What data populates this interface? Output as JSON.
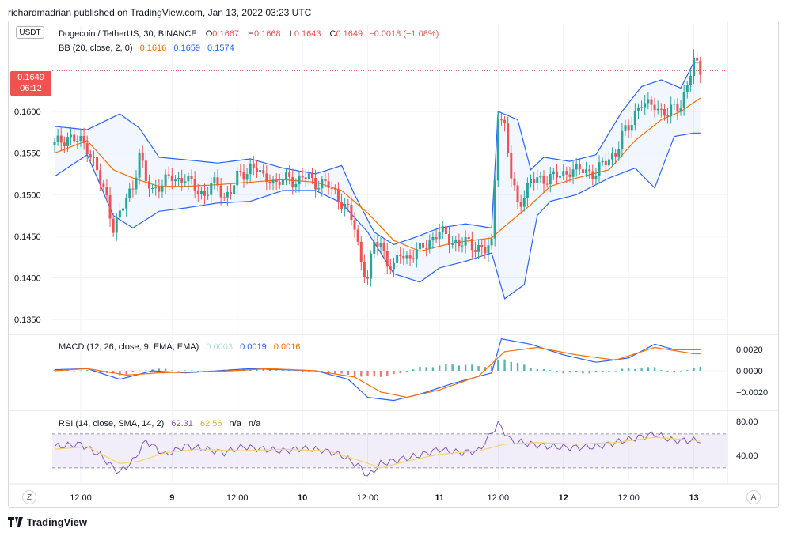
{
  "header": {
    "publisher_line": "richardmadrian published on TradingView.com, Jan 13, 2022 03:23 UTC"
  },
  "currency_button": "USDT",
  "price_tag": {
    "price": "0.1649",
    "countdown": "06:12"
  },
  "legend": {
    "symbol": "Dogecoin / TetherUS, 30, BINANCE",
    "o_label": "O",
    "o": "0.1667",
    "h_label": "H",
    "h": "0.1668",
    "l_label": "L",
    "l": "0.1643",
    "c_label": "C",
    "c": "0.1649",
    "change": "−0.0018 (−1.08%)",
    "bb_label": "BB (20, close, 2, 0)",
    "bb_basis": "0.1616",
    "bb_upper": "0.1659",
    "bb_lower": "0.1574",
    "macd_label": "MACD (12, 26, close, 9, EMA, EMA)",
    "macd_hist": "0.0003",
    "macd_line": "0.0019",
    "macd_signal": "0.0016",
    "rsi_label": "RSI (14, close, SMA, 14, 2)",
    "rsi_value": "62.31",
    "rsi_ma": "62.56",
    "rsi_na1": "n/a",
    "rsi_na2": "n/a"
  },
  "axis": {
    "price_ticks": [
      "0.1600",
      "0.1550",
      "0.1500",
      "0.1450",
      "0.1400",
      "0.1350"
    ],
    "macd_ticks": [
      "0.0020",
      "0.0000",
      "−0.0020"
    ],
    "rsi_ticks": [
      "80.00",
      "40.00"
    ],
    "time_ticks": [
      "12:00",
      "9",
      "12:00",
      "10",
      "12:00",
      "11",
      "12:00",
      "12",
      "12:00",
      "13"
    ]
  },
  "buttons": {
    "zoom": "Z",
    "auto": "A"
  },
  "footer": {
    "brand": "TradingView"
  },
  "colors": {
    "up": "#26a69a",
    "down": "#ef5350",
    "band": "#2962ff",
    "basis": "#ff6d00",
    "rsi": "#7e57c2",
    "rsi_ma": "#f5d36b"
  },
  "chart_data": [
    {
      "type": "candlestick",
      "title": "Dogecoin / TetherUS, 30, BINANCE",
      "ylim": [
        0.1335,
        0.1675
      ],
      "x": [
        "12:00",
        "9",
        "12:00",
        "10",
        "12:00",
        "11",
        "12:00",
        "12",
        "12:00",
        "13"
      ],
      "close_path": [
        [
          0,
          0.156
        ],
        [
          2,
          0.1565
        ],
        [
          4,
          0.157
        ],
        [
          6,
          0.1566
        ],
        [
          8,
          0.1563
        ],
        [
          10,
          0.1558
        ],
        [
          12,
          0.154
        ],
        [
          14,
          0.1515
        ],
        [
          16,
          0.1495
        ],
        [
          18,
          0.1462
        ],
        [
          20,
          0.1475
        ],
        [
          22,
          0.1495
        ],
        [
          24,
          0.151
        ],
        [
          26,
          0.155
        ],
        [
          28,
          0.1515
        ],
        [
          30,
          0.1505
        ],
        [
          32,
          0.1512
        ],
        [
          34,
          0.1516
        ],
        [
          36,
          0.152
        ],
        [
          38,
          0.1518
        ],
        [
          40,
          0.1522
        ],
        [
          42,
          0.151
        ],
        [
          44,
          0.1505
        ],
        [
          46,
          0.15
        ],
        [
          48,
          0.1512
        ],
        [
          50,
          0.151
        ],
        [
          52,
          0.1498
        ],
        [
          54,
          0.1505
        ],
        [
          56,
          0.152
        ],
        [
          58,
          0.1525
        ],
        [
          60,
          0.1535
        ],
        [
          62,
          0.153
        ],
        [
          64,
          0.1518
        ],
        [
          66,
          0.1522
        ],
        [
          68,
          0.1512
        ],
        [
          70,
          0.1516
        ],
        [
          72,
          0.1522
        ],
        [
          74,
          0.1515
        ],
        [
          76,
          0.152
        ],
        [
          78,
          0.152
        ],
        [
          80,
          0.1515
        ],
        [
          82,
          0.1513
        ],
        [
          84,
          0.151
        ],
        [
          86,
          0.1502
        ],
        [
          88,
          0.1492
        ],
        [
          90,
          0.148
        ],
        [
          92,
          0.146
        ],
        [
          94,
          0.142
        ],
        [
          96,
          0.14
        ],
        [
          98,
          0.144
        ],
        [
          100,
          0.1442
        ],
        [
          102,
          0.142
        ],
        [
          104,
          0.141
        ],
        [
          106,
          0.143
        ],
        [
          108,
          0.1425
        ],
        [
          110,
          0.1428
        ],
        [
          112,
          0.1432
        ],
        [
          114,
          0.1442
        ],
        [
          116,
          0.1448
        ],
        [
          118,
          0.1455
        ],
        [
          120,
          0.145
        ],
        [
          122,
          0.1445
        ],
        [
          124,
          0.144
        ],
        [
          126,
          0.1442
        ],
        [
          128,
          0.144
        ],
        [
          130,
          0.1437
        ],
        [
          132,
          0.1432
        ],
        [
          134,
          0.144
        ],
        [
          136,
          0.16
        ],
        [
          138,
          0.158
        ],
        [
          140,
          0.152
        ],
        [
          142,
          0.149
        ],
        [
          144,
          0.15
        ],
        [
          146,
          0.1515
        ],
        [
          148,
          0.1518
        ],
        [
          150,
          0.152
        ],
        [
          152,
          0.152
        ],
        [
          154,
          0.1522
        ],
        [
          156,
          0.1525
        ],
        [
          158,
          0.153
        ],
        [
          160,
          0.1528
        ],
        [
          162,
          0.153
        ],
        [
          164,
          0.1528
        ],
        [
          166,
          0.1525
        ],
        [
          168,
          0.1535
        ],
        [
          170,
          0.1545
        ],
        [
          172,
          0.155
        ],
        [
          174,
          0.157
        ],
        [
          176,
          0.158
        ],
        [
          178,
          0.16
        ],
        [
          180,
          0.161
        ],
        [
          182,
          0.1605
        ],
        [
          184,
          0.161
        ],
        [
          186,
          0.16
        ],
        [
          188,
          0.1595
        ],
        [
          190,
          0.1605
        ],
        [
          192,
          0.161
        ],
        [
          194,
          0.163
        ],
        [
          196,
          0.166
        ],
        [
          198,
          0.1649
        ]
      ],
      "bb_upper": [
        [
          0,
          0.1582
        ],
        [
          10,
          0.1578
        ],
        [
          20,
          0.1597
        ],
        [
          26,
          0.158
        ],
        [
          32,
          0.1545
        ],
        [
          40,
          0.1542
        ],
        [
          50,
          0.1538
        ],
        [
          60,
          0.1543
        ],
        [
          70,
          0.1532
        ],
        [
          80,
          0.1525
        ],
        [
          88,
          0.1535
        ],
        [
          92,
          0.15
        ],
        [
          98,
          0.1455
        ],
        [
          104,
          0.144
        ],
        [
          110,
          0.1448
        ],
        [
          118,
          0.146
        ],
        [
          126,
          0.1465
        ],
        [
          134,
          0.146
        ],
        [
          136,
          0.16
        ],
        [
          142,
          0.159
        ],
        [
          146,
          0.153
        ],
        [
          150,
          0.1545
        ],
        [
          158,
          0.154
        ],
        [
          166,
          0.1548
        ],
        [
          174,
          0.16
        ],
        [
          180,
          0.163
        ],
        [
          186,
          0.1638
        ],
        [
          192,
          0.1628
        ],
        [
          196,
          0.1659
        ]
      ],
      "bb_basis": [
        [
          0,
          0.155
        ],
        [
          10,
          0.1565
        ],
        [
          18,
          0.153
        ],
        [
          24,
          0.152
        ],
        [
          32,
          0.151
        ],
        [
          40,
          0.151
        ],
        [
          50,
          0.1512
        ],
        [
          60,
          0.1515
        ],
        [
          70,
          0.1518
        ],
        [
          80,
          0.1515
        ],
        [
          88,
          0.1505
        ],
        [
          96,
          0.1478
        ],
        [
          104,
          0.1445
        ],
        [
          112,
          0.1432
        ],
        [
          122,
          0.1442
        ],
        [
          134,
          0.1448
        ],
        [
          138,
          0.1462
        ],
        [
          146,
          0.1488
        ],
        [
          152,
          0.151
        ],
        [
          160,
          0.152
        ],
        [
          170,
          0.153
        ],
        [
          178,
          0.1565
        ],
        [
          186,
          0.159
        ],
        [
          192,
          0.16
        ],
        [
          198,
          0.1616
        ]
      ],
      "bb_lower": [
        [
          0,
          0.1522
        ],
        [
          10,
          0.1548
        ],
        [
          18,
          0.1475
        ],
        [
          24,
          0.146
        ],
        [
          32,
          0.148
        ],
        [
          40,
          0.1484
        ],
        [
          50,
          0.149
        ],
        [
          60,
          0.1492
        ],
        [
          70,
          0.1505
        ],
        [
          80,
          0.1505
        ],
        [
          88,
          0.149
        ],
        [
          96,
          0.1455
        ],
        [
          104,
          0.1405
        ],
        [
          112,
          0.1395
        ],
        [
          118,
          0.1412
        ],
        [
          126,
          0.142
        ],
        [
          134,
          0.143
        ],
        [
          138,
          0.1375
        ],
        [
          144,
          0.1392
        ],
        [
          148,
          0.1475
        ],
        [
          152,
          0.1492
        ],
        [
          160,
          0.15
        ],
        [
          170,
          0.152
        ],
        [
          178,
          0.1532
        ],
        [
          184,
          0.1508
        ],
        [
          190,
          0.157
        ],
        [
          196,
          0.1574
        ]
      ]
    },
    {
      "type": "line",
      "title": "MACD (12, 26, close, 9, EMA, EMA)",
      "ylim": [
        -0.0035,
        0.0032
      ],
      "macd": [
        [
          0,
          0.0001
        ],
        [
          10,
          0.0002
        ],
        [
          20,
          -0.0008
        ],
        [
          30,
          0.0
        ],
        [
          40,
          -0.0002
        ],
        [
          50,
          0.0
        ],
        [
          60,
          0.0002
        ],
        [
          70,
          0.0001
        ],
        [
          80,
          0.0
        ],
        [
          90,
          -0.0008
        ],
        [
          96,
          -0.0025
        ],
        [
          104,
          -0.0028
        ],
        [
          112,
          -0.0022
        ],
        [
          122,
          -0.0012
        ],
        [
          134,
          -0.0002
        ],
        [
          137,
          0.003
        ],
        [
          146,
          0.0025
        ],
        [
          156,
          0.0015
        ],
        [
          166,
          0.0008
        ],
        [
          176,
          0.0012
        ],
        [
          184,
          0.0025
        ],
        [
          190,
          0.002
        ],
        [
          196,
          0.002
        ]
      ],
      "signal": [
        [
          0,
          0.0
        ],
        [
          10,
          0.0002
        ],
        [
          22,
          -0.0004
        ],
        [
          32,
          -0.0002
        ],
        [
          44,
          -0.0001
        ],
        [
          54,
          0.0
        ],
        [
          66,
          0.0002
        ],
        [
          80,
          0.0
        ],
        [
          92,
          -0.0006
        ],
        [
          100,
          -0.002
        ],
        [
          108,
          -0.0025
        ],
        [
          118,
          -0.0018
        ],
        [
          130,
          -0.0005
        ],
        [
          138,
          0.0018
        ],
        [
          148,
          0.0022
        ],
        [
          160,
          0.0015
        ],
        [
          172,
          0.001
        ],
        [
          184,
          0.0022
        ],
        [
          196,
          0.0016
        ]
      ],
      "hist": [
        [
          0,
          0.0001
        ],
        [
          10,
          0.0
        ],
        [
          20,
          -0.0004
        ],
        [
          30,
          0.0002
        ],
        [
          40,
          0.0
        ],
        [
          50,
          -0.0001
        ],
        [
          60,
          0.0002
        ],
        [
          70,
          0.0001
        ],
        [
          80,
          -0.0001
        ],
        [
          90,
          -0.0004
        ],
        [
          96,
          -0.0006
        ],
        [
          104,
          -0.0004
        ],
        [
          112,
          0.0003
        ],
        [
          122,
          0.0006
        ],
        [
          134,
          0.0004
        ],
        [
          137,
          0.0012
        ],
        [
          146,
          0.0003
        ],
        [
          156,
          -0.0002
        ],
        [
          166,
          -0.0002
        ],
        [
          176,
          0.0002
        ],
        [
          184,
          0.0003
        ],
        [
          190,
          -0.0002
        ],
        [
          196,
          0.0003
        ]
      ]
    },
    {
      "type": "line",
      "title": "RSI (14, close, SMA, 14, 2)",
      "ylim": [
        15,
        95
      ],
      "bands": [
        70,
        50,
        30
      ],
      "rsi": [
        [
          0,
          55
        ],
        [
          8,
          58
        ],
        [
          14,
          45
        ],
        [
          18,
          30
        ],
        [
          20,
          25
        ],
        [
          24,
          38
        ],
        [
          28,
          62
        ],
        [
          34,
          45
        ],
        [
          40,
          56
        ],
        [
          46,
          52
        ],
        [
          52,
          48
        ],
        [
          58,
          55
        ],
        [
          64,
          52
        ],
        [
          70,
          50
        ],
        [
          76,
          53
        ],
        [
          82,
          51
        ],
        [
          88,
          45
        ],
        [
          94,
          30
        ],
        [
          96,
          20
        ],
        [
          100,
          35
        ],
        [
          106,
          40
        ],
        [
          112,
          45
        ],
        [
          118,
          52
        ],
        [
          124,
          48
        ],
        [
          130,
          50
        ],
        [
          136,
          82
        ],
        [
          140,
          62
        ],
        [
          146,
          58
        ],
        [
          152,
          55
        ],
        [
          158,
          54
        ],
        [
          166,
          55
        ],
        [
          172,
          60
        ],
        [
          178,
          65
        ],
        [
          184,
          70
        ],
        [
          190,
          62
        ],
        [
          196,
          62.31
        ]
      ],
      "rsi_ma": [
        [
          0,
          52
        ],
        [
          10,
          55
        ],
        [
          20,
          35
        ],
        [
          26,
          38
        ],
        [
          34,
          48
        ],
        [
          44,
          52
        ],
        [
          56,
          50
        ],
        [
          70,
          52
        ],
        [
          84,
          50
        ],
        [
          94,
          38
        ],
        [
          100,
          30
        ],
        [
          108,
          38
        ],
        [
          118,
          46
        ],
        [
          130,
          50
        ],
        [
          138,
          58
        ],
        [
          148,
          60
        ],
        [
          160,
          58
        ],
        [
          172,
          60
        ],
        [
          184,
          66
        ],
        [
          196,
          62.56
        ]
      ]
    }
  ]
}
